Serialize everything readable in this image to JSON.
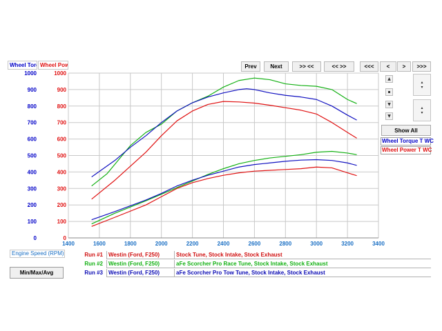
{
  "header": {
    "torque_box": "Wheel Torc",
    "power_box": "Wheel Pow"
  },
  "toolbar": {
    "prev": "Prev",
    "next": "Next",
    "zoom_in": ">> <<",
    "zoom_out": "<< >>",
    "first": "<<<",
    "left": "<",
    "right": ">",
    "last": ">>>"
  },
  "sidebar": {
    "show_all": "Show All",
    "legend_torque": "Wheel Torque T WC",
    "legend_power": "Wheel Power T WC",
    "torque_color": "#0000c8",
    "power_color": "#e01010"
  },
  "footer": {
    "x_axis_label": "Engine Speed (RPM)",
    "minmax_button": "Min/Max/Avg",
    "runs": [
      {
        "label": "Run #1",
        "vehicle": "Westin (Ford, F250)",
        "desc": "Stock Tune, Stock Intake, Stock Exhaust",
        "color": "#d01010"
      },
      {
        "label": "Run #2",
        "vehicle": "Westin (Ford, F250)",
        "desc": "aFe Scorcher Pro Race Tune, Stock Intake, Stock Exhaust",
        "color": "#12b012"
      },
      {
        "label": "Run #3",
        "vehicle": "Westin (Ford, F250)",
        "desc": "aFe Scorcher Pro Tow Tune, Stock Intake, Stock Exhaust",
        "color": "#0a0ab4"
      }
    ]
  },
  "chart_data": {
    "type": "line",
    "xlabel": "Engine Speed (RPM)",
    "xlim": [
      1400,
      3400
    ],
    "ylim": [
      0,
      1000
    ],
    "x_ticks": [
      1400,
      1600,
      1800,
      2000,
      2200,
      2400,
      2600,
      2800,
      3000,
      3200,
      3400
    ],
    "y_ticks": [
      0,
      100,
      200,
      300,
      400,
      500,
      600,
      700,
      800,
      900,
      1000
    ],
    "left_axis_color": "#0000c8",
    "right_axis_color": "#e01010",
    "grid": true,
    "series": [
      {
        "color": "#e01010",
        "x": [
          1550,
          1700,
          1900,
          2000,
          2100,
          2200,
          2300,
          2400,
          2500,
          2600,
          2700,
          2800,
          2900,
          3000,
          3100,
          3200,
          3260
        ],
        "values": [
          235,
          350,
          520,
          620,
          710,
          770,
          810,
          828,
          825,
          818,
          805,
          790,
          775,
          752,
          700,
          640,
          605
        ]
      },
      {
        "color": "#12b012",
        "x": [
          1550,
          1650,
          1800,
          1900,
          2000,
          2100,
          2200,
          2300,
          2400,
          2500,
          2600,
          2700,
          2800,
          2900,
          3000,
          3100,
          3200,
          3260
        ],
        "values": [
          315,
          390,
          560,
          640,
          690,
          770,
          820,
          860,
          915,
          955,
          970,
          960,
          935,
          925,
          920,
          900,
          840,
          815
        ]
      },
      {
        "color": "#1010c0",
        "x": [
          1550,
          1700,
          1800,
          1900,
          2000,
          2100,
          2200,
          2300,
          2400,
          2500,
          2550,
          2600,
          2700,
          2800,
          2900,
          3000,
          3100,
          3200,
          3260
        ],
        "values": [
          370,
          470,
          550,
          620,
          700,
          770,
          820,
          855,
          880,
          900,
          905,
          900,
          880,
          865,
          855,
          840,
          800,
          745,
          715
        ]
      },
      {
        "color": "#e01010",
        "x": [
          1550,
          1700,
          1900,
          2000,
          2100,
          2200,
          2300,
          2400,
          2500,
          2600,
          2700,
          2800,
          2900,
          3000,
          3100,
          3200,
          3260
        ],
        "values": [
          70,
          125,
          200,
          250,
          300,
          335,
          360,
          380,
          395,
          405,
          410,
          415,
          420,
          430,
          425,
          395,
          378
        ]
      },
      {
        "color": "#12b012",
        "x": [
          1550,
          1700,
          1900,
          2000,
          2100,
          2200,
          2300,
          2400,
          2500,
          2600,
          2700,
          2800,
          2900,
          3000,
          3100,
          3200,
          3260
        ],
        "values": [
          85,
          150,
          225,
          265,
          305,
          345,
          385,
          420,
          450,
          470,
          485,
          495,
          505,
          520,
          525,
          515,
          505
        ]
      },
      {
        "color": "#1010c0",
        "x": [
          1550,
          1700,
          1900,
          2000,
          2100,
          2200,
          2300,
          2400,
          2500,
          2600,
          2700,
          2800,
          2900,
          3000,
          3100,
          3200,
          3260
        ],
        "values": [
          110,
          160,
          230,
          270,
          315,
          350,
          380,
          405,
          430,
          445,
          455,
          465,
          472,
          475,
          470,
          455,
          440
        ]
      }
    ]
  }
}
